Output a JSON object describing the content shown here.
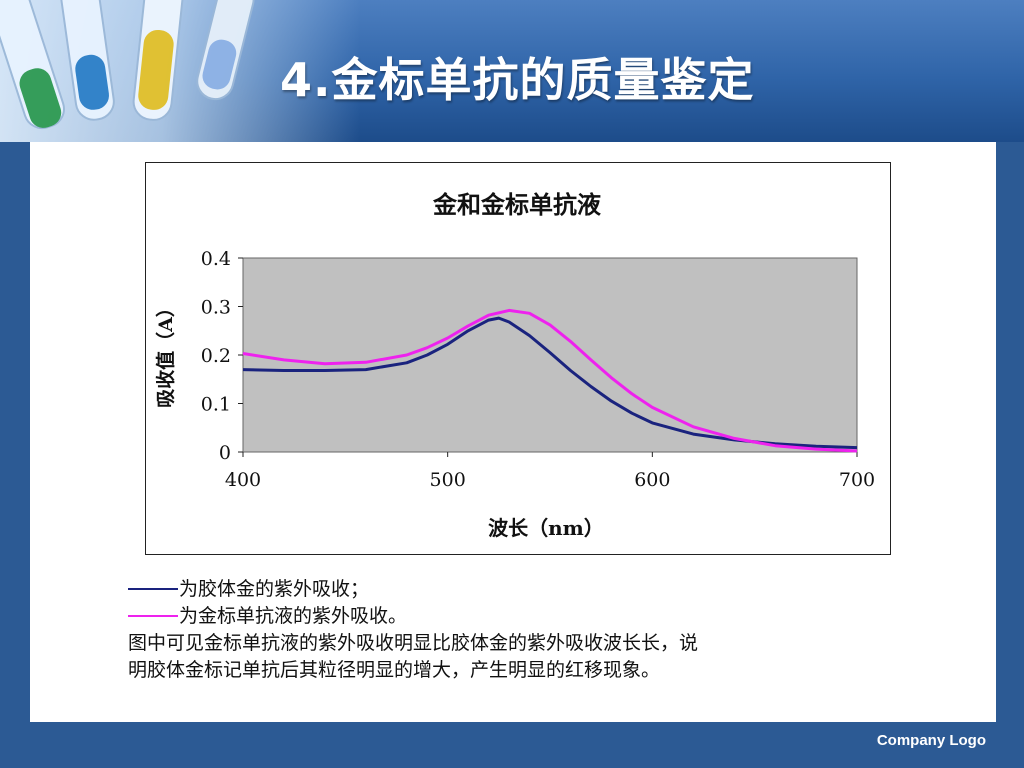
{
  "slide": {
    "title": "4.金标单抗的质量鉴定",
    "footer_logo": "Company Logo",
    "colors": {
      "frame": "#2c5a94",
      "header": "#3a6db0",
      "title_text": "#ffffff"
    }
  },
  "chart_data": {
    "type": "line",
    "title": "金和金标单抗液",
    "xlabel": "波长（nm）",
    "ylabel": "吸收值（A）",
    "xlim": [
      400,
      700
    ],
    "ylim": [
      0,
      0.4
    ],
    "x_ticks": [
      "400",
      "500",
      "600",
      "700"
    ],
    "y_ticks": [
      "0",
      "0.1",
      "0.2",
      "0.3",
      "0.4"
    ],
    "plot_background": "#c0c0c0",
    "grid": false,
    "legend": "none",
    "series": [
      {
        "color": "#1a237e",
        "x": [
          400,
          420,
          440,
          460,
          480,
          490,
          500,
          510,
          520,
          525,
          530,
          540,
          550,
          560,
          570,
          580,
          590,
          600,
          620,
          640,
          660,
          680,
          700
        ],
        "y": [
          0.17,
          0.168,
          0.168,
          0.17,
          0.184,
          0.2,
          0.222,
          0.25,
          0.272,
          0.276,
          0.268,
          0.24,
          0.205,
          0.168,
          0.135,
          0.105,
          0.08,
          0.06,
          0.037,
          0.025,
          0.017,
          0.012,
          0.009
        ]
      },
      {
        "color": "#ee22ee",
        "x": [
          400,
          420,
          440,
          460,
          480,
          490,
          500,
          510,
          520,
          530,
          540,
          550,
          560,
          570,
          580,
          590,
          600,
          620,
          640,
          660,
          680,
          700
        ],
        "y": [
          0.203,
          0.19,
          0.182,
          0.185,
          0.2,
          0.215,
          0.235,
          0.26,
          0.282,
          0.292,
          0.286,
          0.262,
          0.228,
          0.19,
          0.153,
          0.12,
          0.092,
          0.052,
          0.028,
          0.013,
          0.006,
          0.002
        ]
      }
    ]
  },
  "caption": {
    "legend_1": "为胶体金的紫外吸收；",
    "legend_1_color": "#1a237e",
    "legend_2": "为金标单抗液的紫外吸收。",
    "legend_2_color": "#ee22ee",
    "text_line_1": "图中可见金标单抗液的紫外吸收明显比胶体金的紫外吸收波长长，说",
    "text_line_2": "明胶体金标记单抗后其粒径明显的增大，产生明显的红移现象。"
  }
}
